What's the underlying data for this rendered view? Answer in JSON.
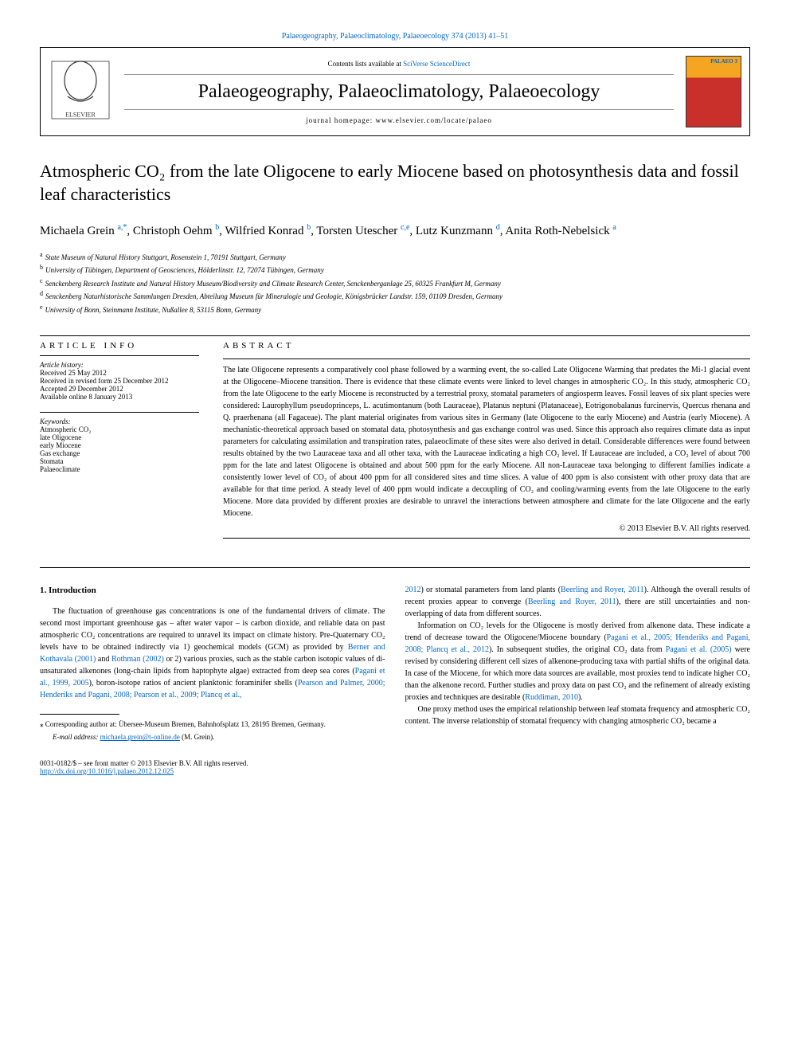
{
  "citation": "Palaeogeography, Palaeoclimatology, Palaeoecology 374 (2013) 41–51",
  "header": {
    "contents_prefix": "Contents lists available at ",
    "contents_link": "SciVerse ScienceDirect",
    "journal_name": "Palaeogeography, Palaeoclimatology, Palaeoecology",
    "homepage_label": "journal homepage: ",
    "homepage_url": "www.elsevier.com/locate/palaeo",
    "cover_label": "PALAEO 3"
  },
  "title": "Atmospheric CO₂ from the late Oligocene to early Miocene based on photosynthesis data and fossil leaf characteristics",
  "authors_html": "Michaela Grein <sup class='author-sup'>a,*</sup>, Christoph Oehm <sup class='author-sup'>b</sup>, Wilfried Konrad <sup class='author-sup'>b</sup>, Torsten Utescher <sup class='author-sup'>c,e</sup>, Lutz Kunzmann <sup class='author-sup'>d</sup>, Anita Roth-Nebelsick <sup class='author-sup'>a</sup>",
  "affiliations": [
    {
      "sup": "a",
      "text": "State Museum of Natural History Stuttgart, Rosenstein 1, 70191 Stuttgart, Germany"
    },
    {
      "sup": "b",
      "text": "University of Tübingen, Department of Geosciences, Hölderlinstr. 12, 72074 Tübingen, Germany"
    },
    {
      "sup": "c",
      "text": "Senckenberg Research Institute and Natural History Museum/Biodiversity and Climate Research Center, Senckenberganlage 25, 60325 Frankfurt M, Germany"
    },
    {
      "sup": "d",
      "text": "Senckenberg Naturhistorische Sammlungen Dresden, Abteilung Museum für Mineralogie und Geologie, Königsbrücker Landstr. 159, 01109 Dresden, Germany"
    },
    {
      "sup": "e",
      "text": "University of Bonn, Steinmann Institute, Nußallee 8, 53115 Bonn, Germany"
    }
  ],
  "article_info": {
    "heading": "ARTICLE INFO",
    "history_label": "Article history:",
    "history": [
      "Received 25 May 2012",
      "Received in revised form 25 December 2012",
      "Accepted 29 December 2012",
      "Available online 8 January 2013"
    ],
    "keywords_label": "Keywords:",
    "keywords": [
      "Atmospheric CO₂",
      "late Oligocene",
      "early Miocene",
      "Gas exchange",
      "Stomata",
      "Palaeoclimate"
    ]
  },
  "abstract": {
    "heading": "ABSTRACT",
    "text": "The late Oligocene represents a comparatively cool phase followed by a warming event, the so-called Late Oligocene Warming that predates the Mi-1 glacial event at the Oligocene–Miocene transition. There is evidence that these climate events were linked to level changes in atmospheric CO₂. In this study, atmospheric CO₂ from the late Oligocene to the early Miocene is reconstructed by a terrestrial proxy, stomatal parameters of angiosperm leaves. Fossil leaves of six plant species were considered: Laurophyllum pseudoprinceps, L. acutimontanum (both Lauraceae), Platanus neptuni (Platanaceae), Eotrigonobalanus furcinervis, Quercus rhenana and Q. praerhenana (all Fagaceae). The plant material originates from various sites in Germany (late Oligocene to the early Miocene) and Austria (early Miocene). A mechanistic-theoretical approach based on stomatal data, photosynthesis and gas exchange control was used. Since this approach also requires climate data as input parameters for calculating assimilation and transpiration rates, palaeoclimate of these sites were also derived in detail. Considerable differences were found between results obtained by the two Lauraceae taxa and all other taxa, with the Lauraceae indicating a high CO₂ level. If Lauraceae are included, a CO₂ level of about 700 ppm for the late and latest Oligocene is obtained and about 500 ppm for the early Miocene. All non-Lauraceae taxa belonging to different families indicate a consistently lower level of CO₂ of about 400 ppm for all considered sites and time slices. A value of 400 ppm is also consistent with other proxy data that are available for that time period. A steady level of 400 ppm would indicate a decoupling of CO₂ and cooling/warming events from the late Oligocene to the early Miocene. More data provided by different proxies are desirable to unravel the interactions between atmosphere and climate for the late Oligocene and the early Miocene.",
    "copyright": "© 2013 Elsevier B.V. All rights reserved."
  },
  "introduction": {
    "heading": "1. Introduction",
    "col1_para1": "The fluctuation of greenhouse gas concentrations is one of the fundamental drivers of climate. The second most important greenhouse gas – after water vapor – is carbon dioxide, and reliable data on past atmospheric CO₂ concentrations are required to unravel its impact on climate history. Pre-Quaternary CO₂ levels have to be obtained indirectly via 1) geochemical models (GCM) as provided by Berner and Kothavala (2001) and Rothman (2002) or 2) various proxies, such as the stable carbon isotopic values of di-unsaturated alkenones (long-chain lipids from haptophyte algae) extracted from deep sea cores (Pagani et al., 1999, 2005), boron-isotope ratios of ancient planktonic foraminifer shells (Pearson and Palmer, 2000; Henderiks and Pagani, 2008; Pearson et al., 2009; Plancq et al.,",
    "col2_para1": "2012) or stomatal parameters from land plants (Beerling and Royer, 2011). Although the overall results of recent proxies appear to converge (Beerling and Royer, 2011), there are still uncertainties and non-overlapping of data from different sources.",
    "col2_para2": "Information on CO₂ levels for the Oligocene is mostly derived from alkenone data. These indicate a trend of decrease toward the Oligocene/Miocene boundary (Pagani et al., 2005; Henderiks and Pagani, 2008; Plancq et al., 2012). In subsequent studies, the original CO₂ data from Pagani et al. (2005) were revised by considering different cell sizes of alkenone-producing taxa with partial shifts of the original data. In case of the Miocene, for which more data sources are available, most proxies tend to indicate higher CO₂ than the alkenone record. Further studies and proxy data on past CO₂ and the refinement of already existing proxies and techniques are desirable (Ruddiman, 2010).",
    "col2_para3": "One proxy method uses the empirical relationship between leaf stomata frequency and atmospheric CO₂ content. The inverse relationship of stomatal frequency with changing atmospheric CO₂ became a"
  },
  "footer": {
    "corresponding": "⁎ Corresponding author at: Übersee-Museum Bremen, Bahnhofsplatz 13, 28195 Bremen, Germany.",
    "email_label": "E-mail address: ",
    "email": "michaela.grein@t-online.de",
    "email_suffix": " (M. Grein).",
    "issn_line": "0031-0182/$ – see front matter © 2013 Elsevier B.V. All rights reserved.",
    "doi": "http://dx.doi.org/10.1016/j.palaeo.2012.12.025"
  },
  "colors": {
    "link": "#0066cc",
    "text": "#000000",
    "background": "#ffffff"
  }
}
